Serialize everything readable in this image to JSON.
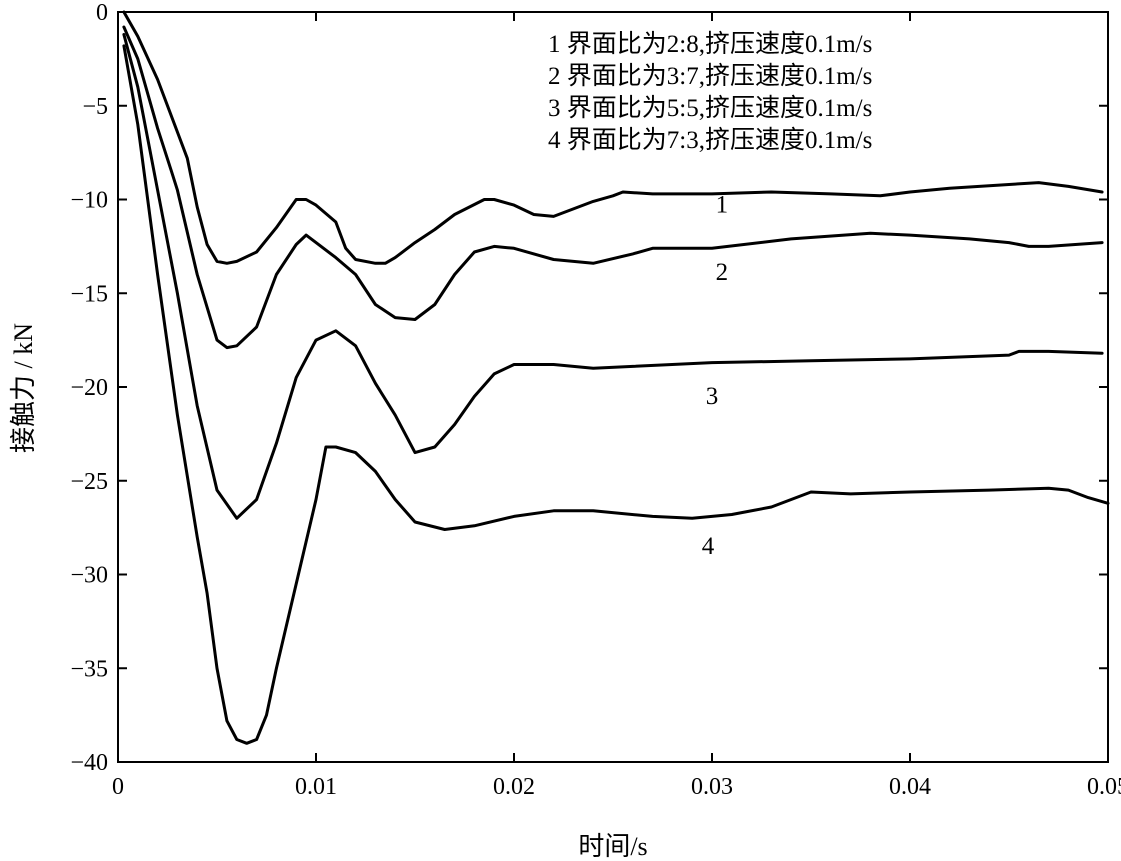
{
  "chart_data": {
    "type": "line",
    "title": "",
    "xlabel": "时间/s",
    "ylabel": "接触力 / kN",
    "xlim": [
      0,
      0.05
    ],
    "ylim": [
      -40,
      0
    ],
    "xticks": [
      {
        "value": 0,
        "label": "0"
      },
      {
        "value": 0.01,
        "label": "0.01"
      },
      {
        "value": 0.02,
        "label": "0.02"
      },
      {
        "value": 0.03,
        "label": "0.03"
      },
      {
        "value": 0.04,
        "label": "0.04"
      },
      {
        "value": 0.05,
        "label": "0.05"
      }
    ],
    "yticks": [
      {
        "value": 0,
        "label": "0"
      },
      {
        "value": -5,
        "label": "−5"
      },
      {
        "value": -10,
        "label": "−10"
      },
      {
        "value": -15,
        "label": "−15"
      },
      {
        "value": -20,
        "label": "−20"
      },
      {
        "value": -25,
        "label": "−25"
      },
      {
        "value": -30,
        "label": "−30"
      },
      {
        "value": -35,
        "label": "−35"
      },
      {
        "value": -40,
        "label": "−40"
      }
    ],
    "grid": false,
    "legend_position": "top-right",
    "legend": [
      "1 界面比为2:8,挤压速度0.1m/s",
      "2 界面比为3:7,挤压速度0.1m/s",
      "3 界面比为5:5,挤压速度0.1m/s",
      "4 界面比为7:3,挤压速度0.1m/s"
    ],
    "series": [
      {
        "label": "1",
        "label_at": [
          0.0305,
          -10.7
        ],
        "points": [
          [
            0.0003,
            0
          ],
          [
            0.001,
            -1.3
          ],
          [
            0.002,
            -3.6
          ],
          [
            0.003,
            -6.4
          ],
          [
            0.0035,
            -7.8
          ],
          [
            0.004,
            -10.4
          ],
          [
            0.0045,
            -12.4
          ],
          [
            0.005,
            -13.3
          ],
          [
            0.0055,
            -13.4
          ],
          [
            0.006,
            -13.3
          ],
          [
            0.007,
            -12.8
          ],
          [
            0.008,
            -11.5
          ],
          [
            0.009,
            -10.0
          ],
          [
            0.0095,
            -10.0
          ],
          [
            0.01,
            -10.3
          ],
          [
            0.011,
            -11.2
          ],
          [
            0.0115,
            -12.6
          ],
          [
            0.012,
            -13.2
          ],
          [
            0.013,
            -13.4
          ],
          [
            0.0135,
            -13.4
          ],
          [
            0.014,
            -13.1
          ],
          [
            0.015,
            -12.3
          ],
          [
            0.016,
            -11.6
          ],
          [
            0.017,
            -10.8
          ],
          [
            0.0185,
            -10.0
          ],
          [
            0.019,
            -10.0
          ],
          [
            0.02,
            -10.3
          ],
          [
            0.021,
            -10.8
          ],
          [
            0.022,
            -10.9
          ],
          [
            0.023,
            -10.5
          ],
          [
            0.024,
            -10.1
          ],
          [
            0.025,
            -9.8
          ],
          [
            0.0255,
            -9.6
          ],
          [
            0.027,
            -9.7
          ],
          [
            0.03,
            -9.7
          ],
          [
            0.033,
            -9.6
          ],
          [
            0.036,
            -9.7
          ],
          [
            0.0385,
            -9.8
          ],
          [
            0.04,
            -9.6
          ],
          [
            0.042,
            -9.4
          ],
          [
            0.045,
            -9.2
          ],
          [
            0.0465,
            -9.1
          ],
          [
            0.048,
            -9.3
          ],
          [
            0.0497,
            -9.6
          ]
        ]
      },
      {
        "label": "2",
        "label_at": [
          0.0305,
          -14.3
        ],
        "points": [
          [
            0.0003,
            -0.8
          ],
          [
            0.001,
            -2.5
          ],
          [
            0.002,
            -6.2
          ],
          [
            0.0027,
            -8.5
          ],
          [
            0.003,
            -9.5
          ],
          [
            0.004,
            -14.0
          ],
          [
            0.005,
            -17.5
          ],
          [
            0.0055,
            -17.9
          ],
          [
            0.006,
            -17.8
          ],
          [
            0.007,
            -16.8
          ],
          [
            0.008,
            -14.0
          ],
          [
            0.009,
            -12.4
          ],
          [
            0.0095,
            -11.9
          ],
          [
            0.01,
            -12.3
          ],
          [
            0.011,
            -13.1
          ],
          [
            0.012,
            -14.0
          ],
          [
            0.013,
            -15.6
          ],
          [
            0.014,
            -16.3
          ],
          [
            0.015,
            -16.4
          ],
          [
            0.016,
            -15.6
          ],
          [
            0.017,
            -14.0
          ],
          [
            0.018,
            -12.8
          ],
          [
            0.019,
            -12.5
          ],
          [
            0.02,
            -12.6
          ],
          [
            0.022,
            -13.2
          ],
          [
            0.024,
            -13.4
          ],
          [
            0.026,
            -12.9
          ],
          [
            0.027,
            -12.6
          ],
          [
            0.03,
            -12.6
          ],
          [
            0.034,
            -12.1
          ],
          [
            0.038,
            -11.8
          ],
          [
            0.04,
            -11.9
          ],
          [
            0.043,
            -12.1
          ],
          [
            0.045,
            -12.3
          ],
          [
            0.046,
            -12.5
          ],
          [
            0.047,
            -12.5
          ],
          [
            0.0497,
            -12.3
          ]
        ]
      },
      {
        "label": "3",
        "label_at": [
          0.03,
          -20.9
        ],
        "points": [
          [
            0.0003,
            -1.2
          ],
          [
            0.001,
            -4.0
          ],
          [
            0.002,
            -9.5
          ],
          [
            0.003,
            -15.0
          ],
          [
            0.004,
            -21.0
          ],
          [
            0.005,
            -25.5
          ],
          [
            0.006,
            -27.0
          ],
          [
            0.007,
            -26.0
          ],
          [
            0.008,
            -23.0
          ],
          [
            0.009,
            -19.5
          ],
          [
            0.01,
            -17.5
          ],
          [
            0.011,
            -17.0
          ],
          [
            0.012,
            -17.8
          ],
          [
            0.013,
            -19.8
          ],
          [
            0.014,
            -21.5
          ],
          [
            0.015,
            -23.5
          ],
          [
            0.016,
            -23.2
          ],
          [
            0.017,
            -22.0
          ],
          [
            0.018,
            -20.5
          ],
          [
            0.019,
            -19.3
          ],
          [
            0.02,
            -18.8
          ],
          [
            0.022,
            -18.8
          ],
          [
            0.024,
            -19.0
          ],
          [
            0.026,
            -18.9
          ],
          [
            0.03,
            -18.7
          ],
          [
            0.035,
            -18.6
          ],
          [
            0.04,
            -18.5
          ],
          [
            0.045,
            -18.3
          ],
          [
            0.0455,
            -18.1
          ],
          [
            0.047,
            -18.1
          ],
          [
            0.0497,
            -18.2
          ]
        ]
      },
      {
        "label": "4",
        "label_at": [
          0.0298,
          -28.9
        ],
        "points": [
          [
            0.0003,
            -1.8
          ],
          [
            0.001,
            -6.0
          ],
          [
            0.002,
            -14.0
          ],
          [
            0.003,
            -21.5
          ],
          [
            0.004,
            -28.0
          ],
          [
            0.0045,
            -31.0
          ],
          [
            0.005,
            -35.0
          ],
          [
            0.0055,
            -37.8
          ],
          [
            0.006,
            -38.8
          ],
          [
            0.0065,
            -39.0
          ],
          [
            0.007,
            -38.8
          ],
          [
            0.0075,
            -37.5
          ],
          [
            0.008,
            -35.0
          ],
          [
            0.009,
            -30.5
          ],
          [
            0.01,
            -26.0
          ],
          [
            0.0105,
            -23.2
          ],
          [
            0.011,
            -23.2
          ],
          [
            0.012,
            -23.5
          ],
          [
            0.013,
            -24.5
          ],
          [
            0.014,
            -26.0
          ],
          [
            0.015,
            -27.2
          ],
          [
            0.0165,
            -27.6
          ],
          [
            0.018,
            -27.4
          ],
          [
            0.02,
            -26.9
          ],
          [
            0.022,
            -26.6
          ],
          [
            0.024,
            -26.6
          ],
          [
            0.027,
            -26.9
          ],
          [
            0.029,
            -27.0
          ],
          [
            0.031,
            -26.8
          ],
          [
            0.033,
            -26.4
          ],
          [
            0.035,
            -25.6
          ],
          [
            0.037,
            -25.7
          ],
          [
            0.04,
            -25.6
          ],
          [
            0.044,
            -25.5
          ],
          [
            0.047,
            -25.4
          ],
          [
            0.048,
            -25.5
          ],
          [
            0.049,
            -25.9
          ],
          [
            0.05,
            -26.2
          ]
        ]
      }
    ]
  }
}
